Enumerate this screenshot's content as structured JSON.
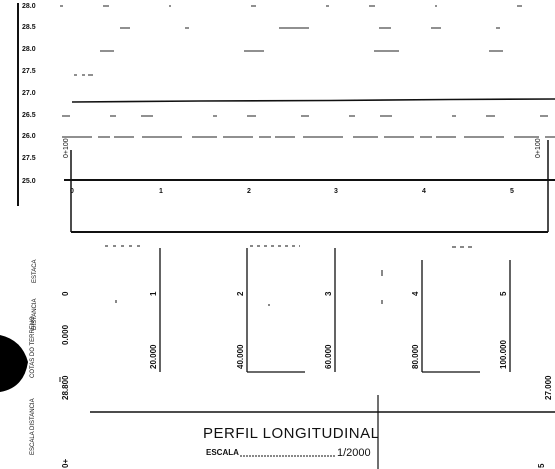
{
  "profile": {
    "elevation_labels": [
      "28.0",
      "28.5",
      "28.0",
      "27.5",
      "27.0",
      "26.5",
      "26.0",
      "27.5",
      "25.0"
    ],
    "left_station_label": "0+100",
    "right_station_label": "0+100",
    "station_ticks": [
      "0",
      "1",
      "2",
      "3",
      "4",
      "5"
    ]
  },
  "table": {
    "row_labels": {
      "estaca": "ESTACA",
      "distancia": "DISTANCIA",
      "cotas": "COTAS DO TERRENO",
      "escala": "ESCALA DISTANCIA"
    },
    "estaca_values": [
      "0",
      "1",
      "2",
      "3",
      "4",
      "5"
    ],
    "distancia_values": [
      "0.000",
      "20.000",
      "40.000",
      "60.000",
      "80.000",
      "100.000"
    ],
    "cota_left": "28.800",
    "cota_right": "27.000",
    "bottom_left_mark": "0+",
    "bottom_right_mark": "5"
  },
  "title_block": {
    "title": "PERFIL  LONGITUDINAL",
    "scale_label": "ESCALA",
    "scale_value": "1/2000"
  }
}
